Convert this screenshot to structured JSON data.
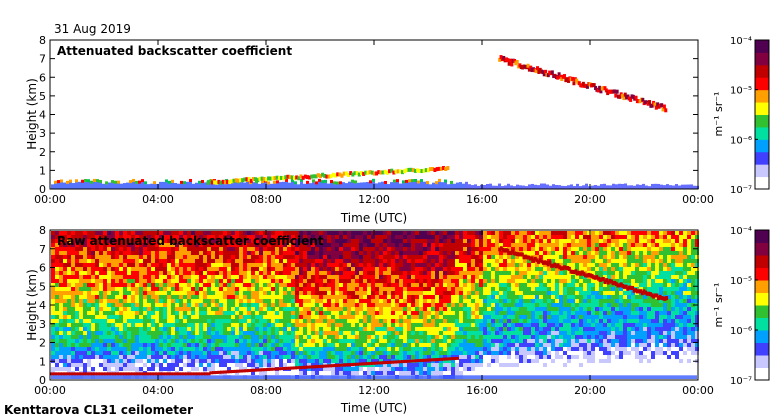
{
  "figure": {
    "date_label": "31 Aug 2019",
    "footer": "Kenttarova CL31 ceilometer"
  },
  "chart_data": [
    {
      "type": "heatmap",
      "title": "Attenuated backscatter coefficient",
      "xlabel": "Time (UTC)",
      "ylabel": "Height (km)",
      "xlim_hours": [
        0,
        24
      ],
      "ylim": [
        0,
        8
      ],
      "x_ticks": [
        "00:00",
        "04:00",
        "08:00",
        "12:00",
        "16:00",
        "20:00",
        "00:00"
      ],
      "y_ticks": [
        "0",
        "1",
        "2",
        "3",
        "4",
        "5",
        "6",
        "7",
        "8"
      ],
      "colorbar": {
        "scale": "log",
        "unit": "m⁻¹ sr⁻¹",
        "tick_labels": [
          "10⁻⁴",
          "10⁻⁵",
          "10⁻⁶",
          "10⁻⁷"
        ],
        "colors": [
          "#ffffff",
          "#c8c8ff",
          "#4040ff",
          "#00a0ff",
          "#00e0a0",
          "#30c030",
          "#ffff00",
          "#ffa000",
          "#ff0000",
          "#c00000",
          "#800040",
          "#500050"
        ]
      },
      "features": [
        {
          "name": "boundary layer",
          "start_h": 0,
          "end_h": 14.8,
          "height_km": [
            0,
            0.35
          ]
        },
        {
          "name": "low cloud layer",
          "start_h": 6,
          "end_h": 14.7,
          "height_km": [
            0.4,
            1.2
          ]
        },
        {
          "name": "upper cloud layer",
          "start_h": 17,
          "end_h": 22.8,
          "height_km": [
            4.2,
            7.3
          ]
        }
      ]
    },
    {
      "type": "heatmap",
      "title": "Raw attenuated backscatter coefficient",
      "xlabel": "Time (UTC)",
      "ylabel": "Height (km)",
      "xlim_hours": [
        0,
        24
      ],
      "ylim": [
        0,
        8
      ],
      "x_ticks": [
        "00:00",
        "04:00",
        "08:00",
        "12:00",
        "16:00",
        "20:00",
        "00:00"
      ],
      "y_ticks": [
        "0",
        "1",
        "2",
        "3",
        "4",
        "5",
        "6",
        "7",
        "8"
      ],
      "colorbar": {
        "scale": "log",
        "unit": "m⁻¹ sr⁻¹",
        "tick_labels": [
          "10⁻⁴",
          "10⁻⁵",
          "10⁻⁶",
          "10⁻⁷"
        ]
      }
    }
  ]
}
